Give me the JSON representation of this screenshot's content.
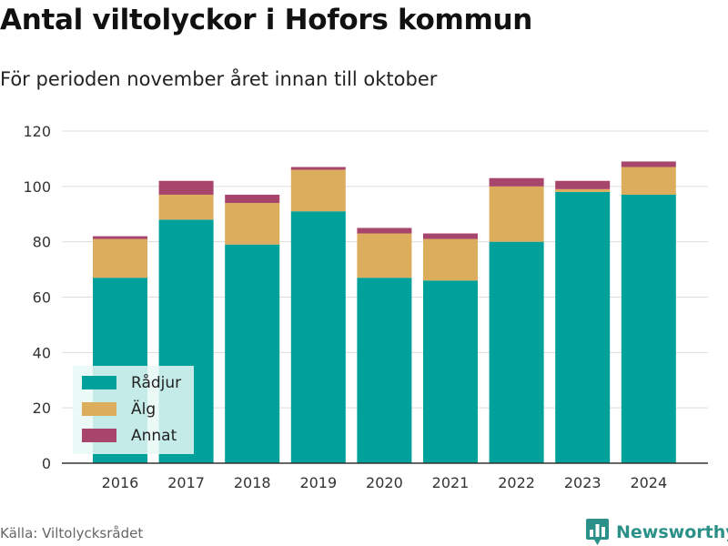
{
  "header": {
    "title": "Antal viltolyckor i Hofors kommun",
    "subtitle": "För perioden november året innan till oktober"
  },
  "footer": {
    "source": "Källa: Viltolycksrådet",
    "brand": "Newsworthy",
    "brand_color": "#2a9088"
  },
  "chart_data": {
    "type": "bar",
    "stacked": true,
    "categories": [
      "2016",
      "2017",
      "2018",
      "2019",
      "2020",
      "2021",
      "2022",
      "2023",
      "2024"
    ],
    "series": [
      {
        "name": "Rådjur",
        "color": "#00a19a",
        "values": [
          67,
          88,
          79,
          91,
          67,
          66,
          80,
          98,
          97
        ]
      },
      {
        "name": "Älg",
        "color": "#dcad5c",
        "values": [
          14,
          9,
          15,
          15,
          16,
          15,
          20,
          1,
          10
        ]
      },
      {
        "name": "Annat",
        "color": "#a8456c",
        "values": [
          1,
          5,
          3,
          1,
          2,
          2,
          3,
          3,
          2
        ]
      }
    ],
    "ylim": [
      0,
      120
    ],
    "yticks": [
      0,
      20,
      40,
      60,
      80,
      100,
      120
    ],
    "grid": true,
    "legend_position": "bottom-left"
  }
}
